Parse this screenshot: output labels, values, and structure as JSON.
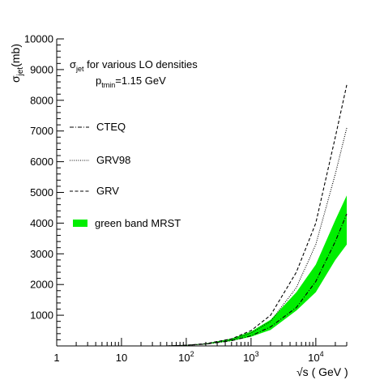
{
  "chart_data": {
    "type": "line",
    "title": "",
    "ylabel_parts": {
      "main": "σ",
      "sub": "jet",
      "rest": "(mb)"
    },
    "xlabel_parts": {
      "root": "√s",
      "rest": " ( GeV )"
    },
    "x_scale": "log",
    "xlim": [
      1,
      30000
    ],
    "ylim": [
      0,
      10000
    ],
    "x_ticks": [
      {
        "value": 1,
        "base": "1",
        "exp": ""
      },
      {
        "value": 10,
        "base": "10",
        "exp": ""
      },
      {
        "value": 100,
        "base": "10",
        "exp": "2"
      },
      {
        "value": 1000,
        "base": "10",
        "exp": "3"
      },
      {
        "value": 10000,
        "base": "10",
        "exp": "4"
      }
    ],
    "y_ticks": [
      1000,
      2000,
      3000,
      4000,
      5000,
      6000,
      7000,
      8000,
      9000,
      10000
    ],
    "grid": false,
    "annotation": {
      "line1": {
        "main": "σ",
        "sub": "jet",
        "rest": " for various LO densities"
      },
      "line2": {
        "main": "p",
        "sub": "tmin",
        "rest": "=1.15 GeV"
      }
    },
    "legend_position": "left",
    "series": [
      {
        "name": "CTEQ",
        "style": "dash-dot",
        "color": "#000000",
        "x": [
          50,
          100,
          200,
          500,
          1000,
          2000,
          5000,
          10000,
          20000,
          30000
        ],
        "y": [
          0,
          20,
          60,
          170,
          330,
          620,
          1250,
          2100,
          3400,
          4300
        ]
      },
      {
        "name": "GRV98",
        "style": "dotted",
        "color": "#000000",
        "x": [
          50,
          100,
          200,
          500,
          1000,
          2000,
          5000,
          10000,
          20000,
          30000
        ],
        "y": [
          0,
          20,
          60,
          200,
          420,
          800,
          1900,
          3300,
          5600,
          7100
        ]
      },
      {
        "name": "GRV",
        "style": "dashed",
        "color": "#000000",
        "x": [
          50,
          100,
          200,
          500,
          1000,
          2000,
          5000,
          10000,
          20000,
          30000
        ],
        "y": [
          0,
          25,
          75,
          230,
          500,
          1000,
          2400,
          4000,
          6800,
          8500
        ]
      }
    ],
    "band": {
      "name": "green band MRST",
      "color": "#00ee00",
      "x": [
        50,
        100,
        200,
        500,
        1000,
        2000,
        5000,
        10000,
        20000,
        30000
      ],
      "upper": [
        10,
        30,
        80,
        240,
        470,
        850,
        1750,
        2650,
        4100,
        4900
      ],
      "lower": [
        0,
        15,
        50,
        160,
        300,
        520,
        1150,
        1750,
        2800,
        3300
      ]
    }
  }
}
